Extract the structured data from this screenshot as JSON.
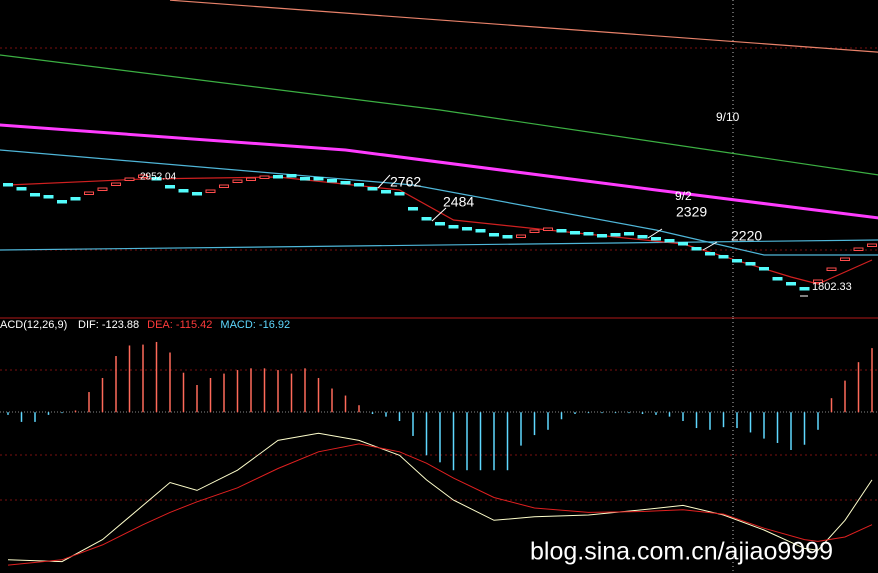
{
  "chart_data": [
    {
      "type": "candlestick",
      "open": [
        2867,
        2827,
        2767,
        2747,
        2697,
        2727,
        2757,
        2797,
        2847,
        2897,
        2927,
        2927,
        2847,
        2807,
        2777,
        2777,
        2827,
        2877,
        2897,
        2917,
        2947,
        2957,
        2927,
        2927,
        2907,
        2887,
        2867,
        2827,
        2797,
        2777,
        2627,
        2527,
        2477,
        2447,
        2427,
        2407,
        2367,
        2347,
        2327,
        2377,
        2397,
        2407,
        2387,
        2377,
        2357,
        2367,
        2377,
        2347,
        2327,
        2307,
        2277,
        2227,
        2177,
        2147,
        2107,
        2077,
        2027,
        1927,
        1877,
        1827,
        1877,
        1997,
        2097,
        2197,
        2237
      ],
      "close": [
        2842,
        2802,
        2742,
        2722,
        2672,
        2702,
        2782,
        2822,
        2872,
        2922,
        2952,
        2902,
        2822,
        2782,
        2752,
        2802,
        2852,
        2902,
        2922,
        2942,
        2922,
        2932,
        2902,
        2902,
        2882,
        2862,
        2842,
        2802,
        2772,
        2752,
        2602,
        2502,
        2452,
        2422,
        2402,
        2382,
        2342,
        2322,
        2352,
        2402,
        2422,
        2382,
        2362,
        2352,
        2332,
        2342,
        2352,
        2322,
        2302,
        2282,
        2252,
        2202,
        2152,
        2122,
        2082,
        2052,
        2002,
        1902,
        1852,
        1802,
        1902,
        2022,
        2122,
        2222,
        2262
      ],
      "up_color": "#ff4d4d",
      "down_color": "#54fcfc",
      "ylim": [
        1522,
        4702
      ],
      "lines": [
        {
          "color": "#e8826a",
          "x": [
            12,
            64.5
          ],
          "values": [
            4700,
            4180
          ]
        },
        {
          "color": "#3cb043",
          "x": [
            -0.6,
            32,
            64.5
          ],
          "values": [
            4152,
            3602,
            2952
          ]
        },
        {
          "color": "#ff3cff",
          "x": [
            -0.6,
            25,
            48,
            64.5
          ],
          "values": [
            3452,
            3202,
            2802,
            2522
          ]
        },
        {
          "color": "#4fb6d8",
          "x": [
            -0.6,
            64.5
          ],
          "values": [
            2202,
            2302
          ]
        },
        {
          "color": "#4fb6d8",
          "x": [
            -0.6,
            30,
            48,
            56,
            64.5
          ],
          "values": [
            3202,
            2852,
            2402,
            2152,
            2152
          ]
        },
        {
          "color": "#d02020",
          "x": [
            0,
            10,
            20,
            29,
            33,
            40,
            50,
            58,
            60,
            64
          ],
          "values": [
            2852,
            2912,
            2932,
            2802,
            2502,
            2402,
            2262,
            1932,
            1862,
            2102
          ]
        }
      ],
      "annotations": [
        "2952.04",
        "2762",
        "2484",
        "9/2",
        "2329",
        "9/10",
        "2220",
        "1802.33"
      ]
    },
    {
      "type": "macd",
      "title": "ACD(12,26,9)",
      "legend": [
        {
          "label": "DIF:",
          "value": -123.88,
          "color": "#ffffff"
        },
        {
          "label": "DEA:",
          "value": -115.42,
          "color": "#ff3b3b"
        },
        {
          "label": "MACD:",
          "value": -16.92,
          "color": "#5fd8ff"
        }
      ],
      "histogram": [
        -3,
        -11,
        -11,
        -3,
        -1,
        2,
        23,
        39,
        64,
        76,
        77,
        80,
        68,
        45,
        31,
        39,
        44,
        48,
        50,
        50,
        48,
        44,
        50,
        39,
        27,
        19,
        8,
        -2,
        -5,
        -10,
        -27,
        -49,
        -57,
        -66,
        -66,
        -66,
        -66,
        -66,
        -38,
        -26,
        -20,
        -8,
        -2,
        -1,
        -1,
        -1,
        -1,
        -2,
        -3,
        -5,
        -10,
        -18,
        -20,
        -17,
        -18,
        -23,
        -30,
        -35,
        -43,
        -37,
        -20,
        16,
        36,
        57,
        73
      ],
      "pos_color": "#ff6a5a",
      "neg_color": "#5fd8ff",
      "x": [
        0,
        4,
        7,
        10,
        12,
        14,
        17,
        20,
        23,
        26,
        29,
        31,
        33,
        36,
        39,
        43,
        47,
        50,
        53,
        56,
        59,
        60,
        62,
        64
      ],
      "series": [
        {
          "color": "#ffffcc",
          "values": [
            -168,
            -170,
            -145,
            -106,
            -80,
            -89,
            -66,
            -32,
            -24,
            -32,
            -49,
            -77,
            -100,
            -123,
            -119,
            -117,
            -111,
            -106,
            -117,
            -134,
            -155,
            -157,
            -123,
            -77
          ]
        },
        {
          "color": "#e02020",
          "values": [
            -174,
            -168,
            -151,
            -128,
            -114,
            -102,
            -86,
            -64,
            -45,
            -36,
            -45,
            -58,
            -75,
            -97,
            -109,
            -114,
            -113,
            -111,
            -116,
            -132,
            -145,
            -147,
            -142,
            -128
          ]
        }
      ],
      "ylim": [
        -183,
        105
      ]
    }
  ],
  "watermark": "blog.sina.com.cn/ajiao9999"
}
